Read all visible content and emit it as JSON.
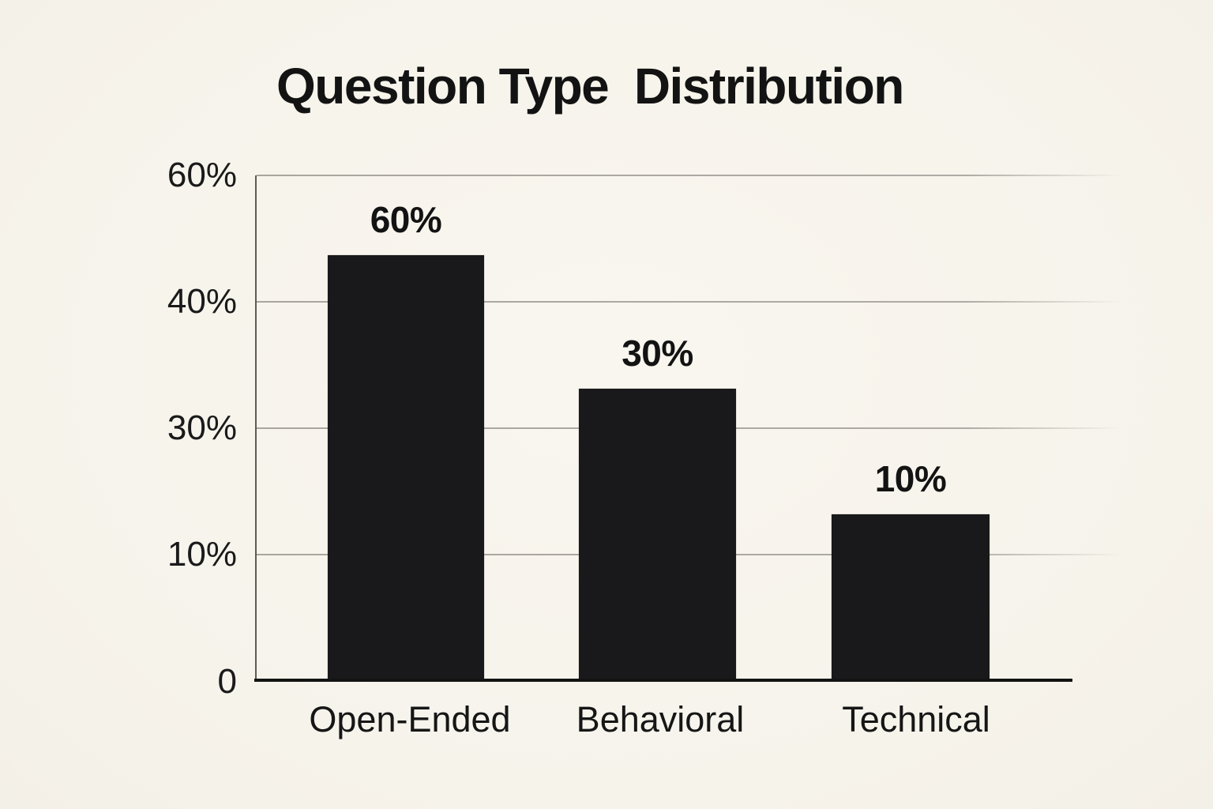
{
  "title": "Question Type Distribution",
  "display_title": "Question Type  Distribution",
  "chart_data": {
    "type": "bar",
    "title": "Question Type Distribution",
    "categories": [
      "Open-Ended",
      "Behavioral",
      "Technical"
    ],
    "values": [
      60,
      30,
      10
    ],
    "value_labels": [
      "60%",
      "30%",
      "10%"
    ],
    "ytick_labels": [
      "60%",
      "40%",
      "30%",
      "10%",
      "0"
    ],
    "ylim": [
      0,
      60
    ],
    "xlabel": "",
    "ylabel": "",
    "legend": "none",
    "grid": "horizontal",
    "drawn_height_fractions": [
      0.839,
      0.575,
      0.327
    ]
  },
  "colors": {
    "background": "#f7f4ec",
    "bar": "#19191b",
    "gridline": "#aaa7a0",
    "x_axis": "#131313",
    "y_axis": "#5d5b55",
    "text": "#131313"
  }
}
